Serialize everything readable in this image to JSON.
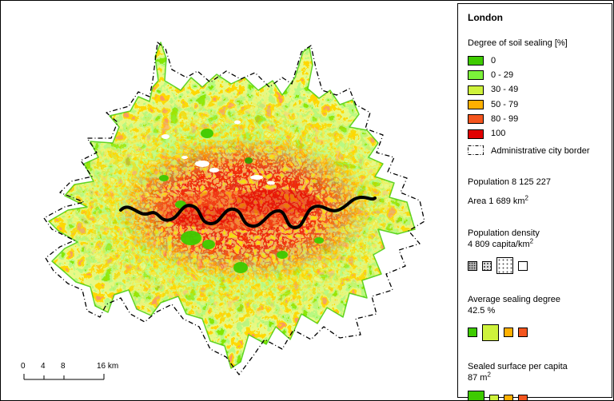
{
  "map": {
    "scalebar_labels": [
      "0",
      "4",
      "8",
      "16 km"
    ]
  },
  "legend": {
    "title": "London",
    "sealing_heading": "Degree of soil sealing [%]",
    "sealing_classes": [
      {
        "label": "0",
        "color": "#3ecb00"
      },
      {
        "label": "0 - 29",
        "color": "#7bf23a"
      },
      {
        "label": "30 - 49",
        "color": "#cef23c"
      },
      {
        "label": "50 - 79",
        "color": "#ffb000"
      },
      {
        "label": "80 - 99",
        "color": "#f4551e"
      },
      {
        "label": "100",
        "color": "#e10000"
      }
    ],
    "admin_border_label": "Administrative city border",
    "population": "Population 8 125 227",
    "area_text": "Area 1 689 km",
    "area_sup": "2",
    "density_line1": "Population density",
    "density_line2": "4 809 capita/km",
    "density_sup": "2",
    "density_classes": [
      {
        "pattern": "dense",
        "large": false
      },
      {
        "pattern": "medium",
        "large": false
      },
      {
        "pattern": "sparse",
        "large": true
      },
      {
        "pattern": "empty",
        "large": false
      }
    ],
    "avg_sealing_line1": "Average sealing degree",
    "avg_sealing_line2": "42.5 %",
    "avg_sealing_classes": [
      {
        "color": "#3ecb00",
        "large": false
      },
      {
        "color": "#cef23c",
        "large": true
      },
      {
        "color": "#ffb000",
        "large": false
      },
      {
        "color": "#f4551e",
        "large": false
      }
    ],
    "sealed_line1": "Sealed surface per capita",
    "sealed_line2": "87 m",
    "sealed_sup": "2",
    "sealed_classes": [
      {
        "color": "#3ecb00",
        "large": true
      },
      {
        "color": "#cef23c",
        "large": false
      },
      {
        "color": "#ffb000",
        "large": false
      },
      {
        "color": "#f4551e",
        "large": false
      }
    ]
  }
}
